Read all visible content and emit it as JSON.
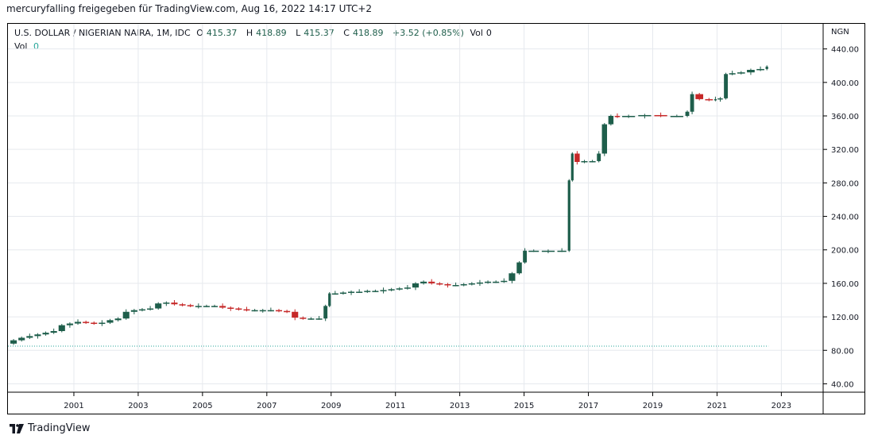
{
  "header": {
    "caption": "mercuryfalling freigegeben für TradingView.com, Aug 16, 2022 14:17 UTC+2"
  },
  "legend": {
    "symbol": "U.S. DOLLAR / NIGERIAN NAIRA, 1M, IDC",
    "open_label": "O",
    "open": "415.37",
    "high_label": "H",
    "high": "418.89",
    "low_label": "L",
    "low": "415.37",
    "close_label": "C",
    "close": "418.89",
    "change": "+3.52 (+0.85%)",
    "vol_label": "Vol",
    "vol": "0",
    "vol2_label": "Vol",
    "vol2": "0"
  },
  "footer": {
    "brand": "TradingView"
  },
  "colors": {
    "up": "#1e5e4b",
    "down": "#c62828",
    "grid": "#e6e9ee",
    "volume_line": "#26a69a",
    "axis_text": "#131722"
  },
  "chart_data": {
    "type": "candlestick",
    "title": "",
    "currency": "NGN",
    "ylim": [
      30,
      470
    ],
    "y_ticks": [
      "40.00",
      "80.00",
      "120.00",
      "160.00",
      "200.00",
      "240.00",
      "280.00",
      "320.00",
      "360.00",
      "400.00",
      "440.00"
    ],
    "x_ticks": [
      "2001",
      "2003",
      "2005",
      "2007",
      "2009",
      "2011",
      "2013",
      "2015",
      "2017",
      "2019",
      "2021",
      "2023"
    ],
    "xlim": [
      1998.95,
      2024.3
    ],
    "grid": true,
    "volume_level": 85,
    "series": [
      {
        "t": 1999.0,
        "v": 88
      },
      {
        "t": 1999.25,
        "v": 92
      },
      {
        "t": 1999.5,
        "v": 95
      },
      {
        "t": 1999.75,
        "v": 97
      },
      {
        "t": 2000.0,
        "v": 99
      },
      {
        "t": 2000.25,
        "v": 101
      },
      {
        "t": 2000.5,
        "v": 103
      },
      {
        "t": 2000.75,
        "v": 110
      },
      {
        "t": 2001.0,
        "v": 112
      },
      {
        "t": 2001.25,
        "v": 114
      },
      {
        "t": 2001.5,
        "v": 113
      },
      {
        "t": 2001.75,
        "v": 112
      },
      {
        "t": 2002.0,
        "v": 113
      },
      {
        "t": 2002.25,
        "v": 116
      },
      {
        "t": 2002.5,
        "v": 118
      },
      {
        "t": 2002.75,
        "v": 126
      },
      {
        "t": 2003.0,
        "v": 128
      },
      {
        "t": 2003.25,
        "v": 129
      },
      {
        "t": 2003.5,
        "v": 130
      },
      {
        "t": 2003.75,
        "v": 136
      },
      {
        "t": 2004.0,
        "v": 137
      },
      {
        "t": 2004.25,
        "v": 135
      },
      {
        "t": 2004.5,
        "v": 134
      },
      {
        "t": 2004.75,
        "v": 133
      },
      {
        "t": 2005.0,
        "v": 133
      },
      {
        "t": 2005.25,
        "v": 133
      },
      {
        "t": 2005.5,
        "v": 133
      },
      {
        "t": 2005.75,
        "v": 131
      },
      {
        "t": 2006.0,
        "v": 130
      },
      {
        "t": 2006.25,
        "v": 129
      },
      {
        "t": 2006.5,
        "v": 128
      },
      {
        "t": 2006.75,
        "v": 128
      },
      {
        "t": 2007.0,
        "v": 128
      },
      {
        "t": 2007.25,
        "v": 128
      },
      {
        "t": 2007.5,
        "v": 127
      },
      {
        "t": 2007.75,
        "v": 126
      },
      {
        "t": 2008.0,
        "v": 119
      },
      {
        "t": 2008.25,
        "v": 118
      },
      {
        "t": 2008.5,
        "v": 118
      },
      {
        "t": 2008.75,
        "v": 118
      },
      {
        "t": 2008.9,
        "v": 133
      },
      {
        "t": 2009.0,
        "v": 148
      },
      {
        "t": 2009.25,
        "v": 148
      },
      {
        "t": 2009.5,
        "v": 149
      },
      {
        "t": 2009.75,
        "v": 150
      },
      {
        "t": 2010.0,
        "v": 150
      },
      {
        "t": 2010.25,
        "v": 151
      },
      {
        "t": 2010.5,
        "v": 151
      },
      {
        "t": 2010.75,
        "v": 152
      },
      {
        "t": 2011.0,
        "v": 153
      },
      {
        "t": 2011.25,
        "v": 154
      },
      {
        "t": 2011.5,
        "v": 155
      },
      {
        "t": 2011.75,
        "v": 160
      },
      {
        "t": 2012.0,
        "v": 162
      },
      {
        "t": 2012.25,
        "v": 160
      },
      {
        "t": 2012.5,
        "v": 159
      },
      {
        "t": 2012.75,
        "v": 158
      },
      {
        "t": 2013.0,
        "v": 158
      },
      {
        "t": 2013.25,
        "v": 159
      },
      {
        "t": 2013.5,
        "v": 160
      },
      {
        "t": 2013.75,
        "v": 161
      },
      {
        "t": 2014.0,
        "v": 162
      },
      {
        "t": 2014.25,
        "v": 162
      },
      {
        "t": 2014.5,
        "v": 163
      },
      {
        "t": 2014.75,
        "v": 172
      },
      {
        "t": 2014.95,
        "v": 185
      },
      {
        "t": 2015.1,
        "v": 199
      },
      {
        "t": 2015.5,
        "v": 199
      },
      {
        "t": 2016.0,
        "v": 199
      },
      {
        "t": 2016.35,
        "v": 199
      },
      {
        "t": 2016.45,
        "v": 283
      },
      {
        "t": 2016.55,
        "v": 315
      },
      {
        "t": 2016.75,
        "v": 305
      },
      {
        "t": 2017.0,
        "v": 306
      },
      {
        "t": 2017.25,
        "v": 306
      },
      {
        "t": 2017.4,
        "v": 315
      },
      {
        "t": 2017.6,
        "v": 350
      },
      {
        "t": 2017.8,
        "v": 360
      },
      {
        "t": 2018.0,
        "v": 359
      },
      {
        "t": 2018.5,
        "v": 360
      },
      {
        "t": 2019.0,
        "v": 361
      },
      {
        "t": 2019.5,
        "v": 360
      },
      {
        "t": 2020.0,
        "v": 360
      },
      {
        "t": 2020.15,
        "v": 365
      },
      {
        "t": 2020.3,
        "v": 386
      },
      {
        "t": 2020.6,
        "v": 380
      },
      {
        "t": 2020.9,
        "v": 379
      },
      {
        "t": 2021.0,
        "v": 380
      },
      {
        "t": 2021.2,
        "v": 381
      },
      {
        "t": 2021.35,
        "v": 410
      },
      {
        "t": 2021.6,
        "v": 411
      },
      {
        "t": 2021.9,
        "v": 412
      },
      {
        "t": 2022.2,
        "v": 415
      },
      {
        "t": 2022.5,
        "v": 416
      },
      {
        "t": 2022.6,
        "v": 418.89
      }
    ]
  }
}
